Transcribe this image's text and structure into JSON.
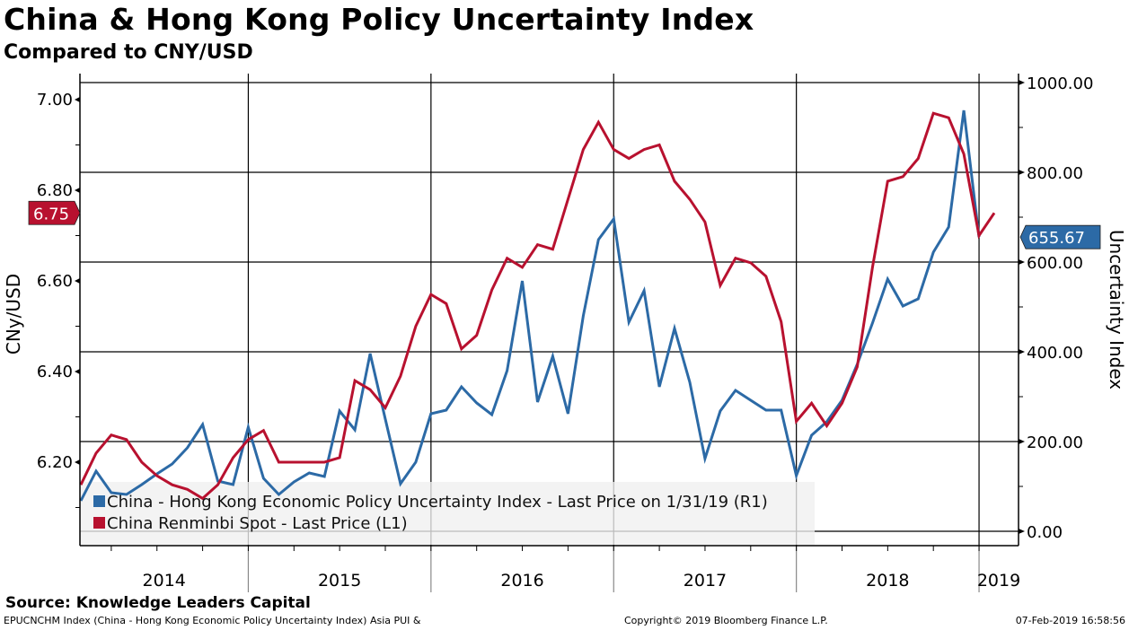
{
  "header": {
    "title": "China & Hong Kong Policy Uncertainty Index",
    "subtitle": "Compared to CNY/USD"
  },
  "footer": {
    "source": "Source: Knowledge Leaders Capital",
    "ticker_note": "EPUCNCHM Index (China - Hong Kong Economic Policy Uncertainty Index) Asia PUI &",
    "copyright": "Copyright© 2019 Bloomberg Finance L.P.",
    "timestamp": "07-Feb-2019 16:58:56"
  },
  "colors": {
    "blue_series": "#2c6aa6",
    "red_series": "#b8112f",
    "legend_bg": "#f0f0f0"
  },
  "chart_data": {
    "type": "line",
    "title": "China & Hong Kong Policy Uncertainty Index",
    "subtitle": "Compared to CNY/USD",
    "xlabel": "",
    "ylabel_left": "CNy/USD",
    "ylabel_right": "Uncertainty Index",
    "ylim_left": [
      6.04,
      7.04
    ],
    "ylim_right": [
      -32,
      1038
    ],
    "left_ticks": [
      "7.00",
      "6.80",
      "6.60",
      "6.40",
      "6.20"
    ],
    "left_tick_values": [
      7.0,
      6.8,
      6.6,
      6.4,
      6.2
    ],
    "right_ticks": [
      "1000.00",
      "800.00",
      "600.00",
      "400.00",
      "200.00",
      "0.00"
    ],
    "right_tick_values": [
      1000,
      800,
      600,
      400,
      200,
      0
    ],
    "year_labels": [
      "2014",
      "2015",
      "2016",
      "2017",
      "2018",
      "2019"
    ],
    "grid": true,
    "legend_position": "bottom-left",
    "x": [
      "2014-02",
      "2014-03",
      "2014-04",
      "2014-05",
      "2014-06",
      "2014-07",
      "2014-08",
      "2014-09",
      "2014-10",
      "2014-11",
      "2014-12",
      "2015-01",
      "2015-02",
      "2015-03",
      "2015-04",
      "2015-05",
      "2015-06",
      "2015-07",
      "2015-08",
      "2015-09",
      "2015-10",
      "2015-11",
      "2015-12",
      "2016-01",
      "2016-02",
      "2016-03",
      "2016-04",
      "2016-05",
      "2016-06",
      "2016-07",
      "2016-08",
      "2016-09",
      "2016-10",
      "2016-11",
      "2016-12",
      "2017-01",
      "2017-02",
      "2017-03",
      "2017-04",
      "2017-05",
      "2017-06",
      "2017-07",
      "2017-08",
      "2017-09",
      "2017-10",
      "2017-11",
      "2017-12",
      "2018-01",
      "2018-02",
      "2018-03",
      "2018-04",
      "2018-05",
      "2018-06",
      "2018-07",
      "2018-08",
      "2018-09",
      "2018-10",
      "2018-11",
      "2018-12",
      "2019-01",
      "2019-02"
    ],
    "series": [
      {
        "name": "China - Hong Kong Economic Policy Uncertainty Index - Last Price on 1/31/19 (R1)",
        "axis": "right",
        "color": "#2c6aa6",
        "last_value_label": "655.67",
        "values": [
          68,
          134,
          86,
          82,
          104,
          128,
          150,
          186,
          238,
          112,
          104,
          232,
          118,
          82,
          110,
          130,
          122,
          268,
          226,
          396,
          250,
          106,
          154,
          262,
          270,
          322,
          286,
          260,
          358,
          558,
          288,
          390,
          262,
          480,
          650,
          696,
          466,
          536,
          322,
          452,
          332,
          162,
          268,
          314,
          292,
          270,
          270,
          124,
          214,
          244,
          292,
          372,
          464,
          562,
          502,
          518,
          622,
          678,
          938,
          655.67,
          null
        ]
      },
      {
        "name": "China Renminbi Spot - Last Price (L1)",
        "axis": "left",
        "color": "#b8112f",
        "last_value_label": "6.75",
        "values": [
          6.15,
          6.22,
          6.26,
          6.25,
          6.2,
          6.17,
          6.15,
          6.14,
          6.12,
          6.15,
          6.21,
          6.25,
          6.27,
          6.2,
          6.2,
          6.2,
          6.2,
          6.21,
          6.38,
          6.36,
          6.32,
          6.39,
          6.5,
          6.57,
          6.55,
          6.45,
          6.48,
          6.58,
          6.65,
          6.63,
          6.68,
          6.67,
          6.78,
          6.89,
          6.95,
          6.89,
          6.87,
          6.89,
          6.9,
          6.82,
          6.78,
          6.73,
          6.59,
          6.65,
          6.64,
          6.61,
          6.51,
          6.29,
          6.33,
          6.28,
          6.33,
          6.41,
          6.63,
          6.82,
          6.83,
          6.87,
          6.97,
          6.96,
          6.88,
          6.7,
          6.75
        ]
      }
    ]
  }
}
